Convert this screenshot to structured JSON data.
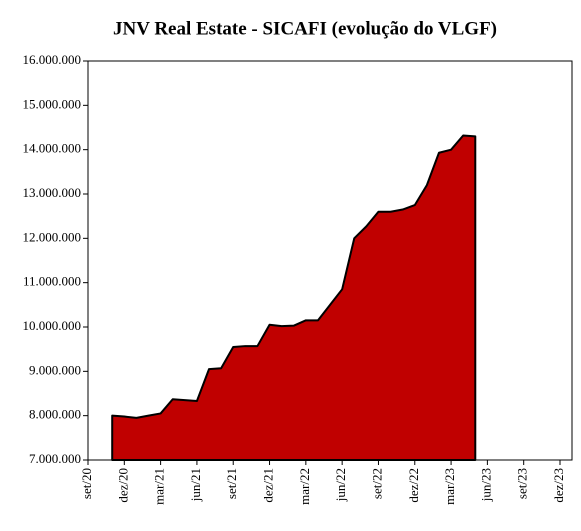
{
  "chart_data": {
    "type": "area",
    "title": "JNV Real Estate - SICAFI (evolução do VLGF)",
    "x": [
      "2020-11",
      "2020-12",
      "2021-01",
      "2021-02",
      "2021-03",
      "2021-04",
      "2021-05",
      "2021-06",
      "2021-07",
      "2021-08",
      "2021-09",
      "2021-10",
      "2021-11",
      "2021-12",
      "2022-01",
      "2022-02",
      "2022-03",
      "2022-04",
      "2022-05",
      "2022-06",
      "2022-07",
      "2022-08",
      "2022-09",
      "2022-10",
      "2022-11",
      "2022-12",
      "2023-01",
      "2023-02",
      "2023-03",
      "2023-04",
      "2023-05"
    ],
    "values": [
      8000000,
      7980000,
      7950000,
      8000000,
      8050000,
      8370000,
      8350000,
      8330000,
      9050000,
      9070000,
      9550000,
      9570000,
      9570000,
      10050000,
      10020000,
      10030000,
      10150000,
      10150000,
      10500000,
      10850000,
      12000000,
      12270000,
      12600000,
      12600000,
      12650000,
      12750000,
      13200000,
      13930000,
      14000000,
      14320000,
      14300000
    ],
    "color": "#c00000",
    "line_color": "#000000",
    "xlim": [
      "2020-09",
      "2023-12"
    ],
    "xticks": [
      {
        "value": "2020-09",
        "label": "set/20"
      },
      {
        "value": "2020-12",
        "label": "dez/20"
      },
      {
        "value": "2021-03",
        "label": "mar/21"
      },
      {
        "value": "2021-06",
        "label": "jun/21"
      },
      {
        "value": "2021-09",
        "label": "set/21"
      },
      {
        "value": "2021-12",
        "label": "dez/21"
      },
      {
        "value": "2022-03",
        "label": "mar/22"
      },
      {
        "value": "2022-06",
        "label": "jun/22"
      },
      {
        "value": "2022-09",
        "label": "set/22"
      },
      {
        "value": "2022-12",
        "label": "dez/22"
      },
      {
        "value": "2023-03",
        "label": "mar/23"
      },
      {
        "value": "2023-06",
        "label": "jun/23"
      },
      {
        "value": "2023-09",
        "label": "set/23"
      },
      {
        "value": "2023-12",
        "label": "dez/23"
      }
    ],
    "ylim": [
      7000000,
      16000000
    ],
    "yticks": [
      {
        "value": 7000000,
        "label": "7.000.000"
      },
      {
        "value": 8000000,
        "label": "8.000.000"
      },
      {
        "value": 9000000,
        "label": "9.000.000"
      },
      {
        "value": 10000000,
        "label": "10.000.000"
      },
      {
        "value": 11000000,
        "label": "11.000.000"
      },
      {
        "value": 12000000,
        "label": "12.000.000"
      },
      {
        "value": 13000000,
        "label": "13.000.000"
      },
      {
        "value": 14000000,
        "label": "14.000.000"
      },
      {
        "value": 15000000,
        "label": "15.000.000"
      },
      {
        "value": 16000000,
        "label": "16.000.000"
      }
    ]
  }
}
